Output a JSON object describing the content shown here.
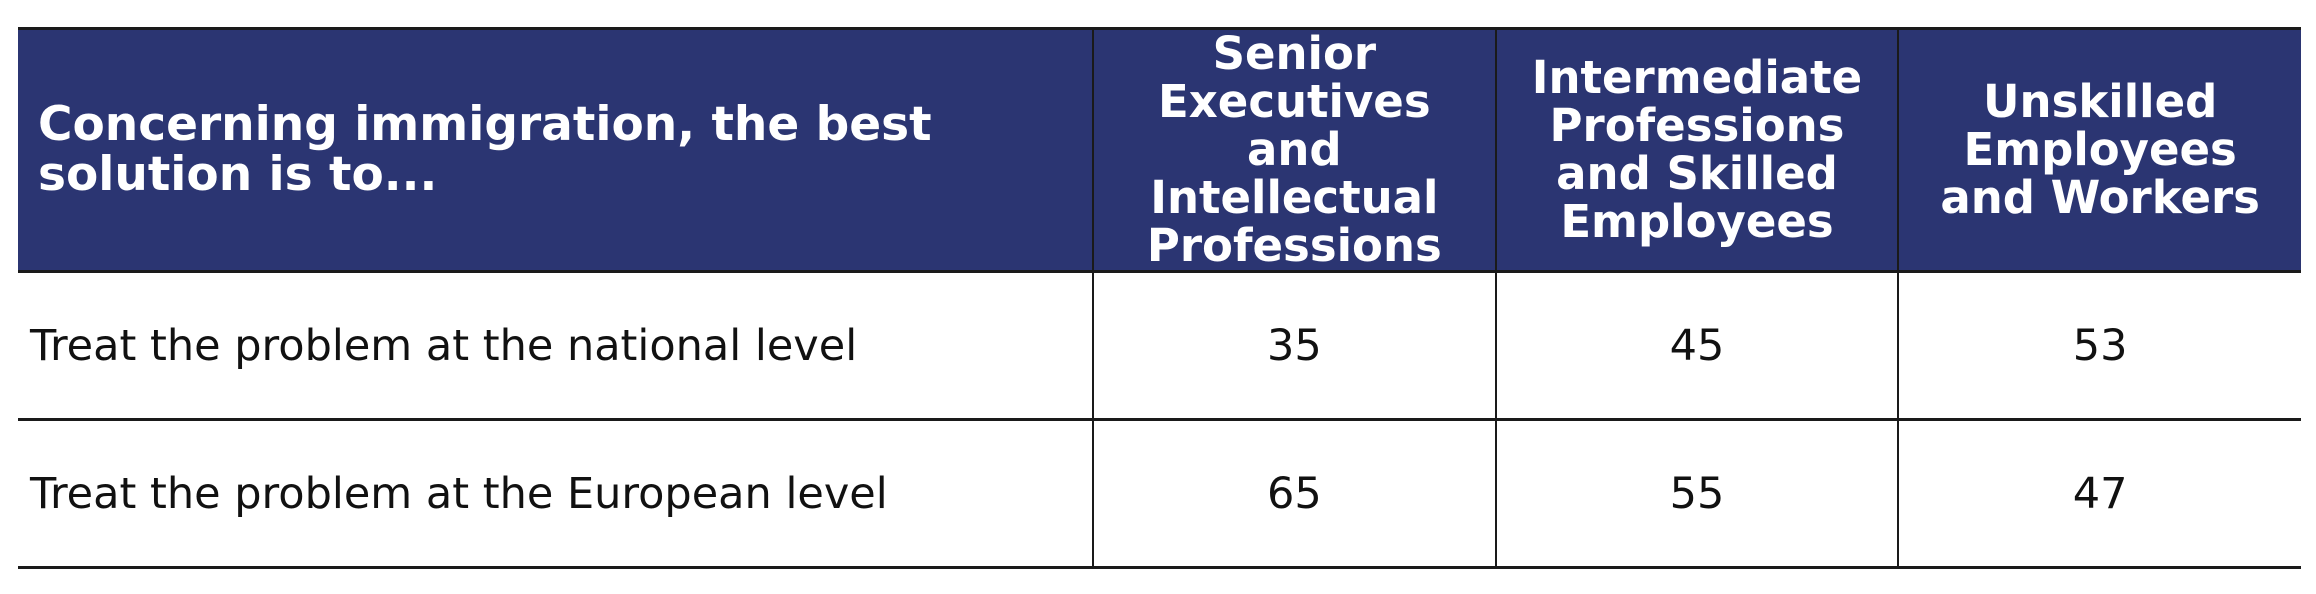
{
  "table": {
    "header": [
      "Concerning immigration, the best solution is to...",
      "Senior Executives and Intellectual Professions",
      "Intermediate Professions and Skilled Employees",
      "Unskilled Employees and Workers"
    ],
    "rows": [
      [
        "Treat the problem at the national level",
        35,
        45,
        53
      ],
      [
        "Treat the problem at the European level",
        65,
        55,
        47
      ]
    ]
  }
}
